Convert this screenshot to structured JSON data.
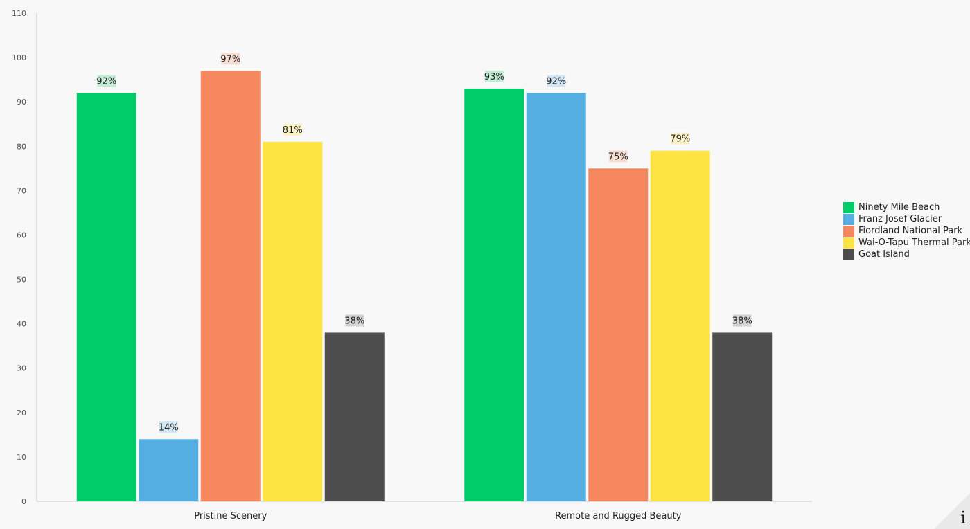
{
  "chart_data": {
    "type": "bar",
    "categories": [
      "Pristine Scenery",
      "Remote and Rugged Beauty"
    ],
    "series": [
      {
        "name": "Ninety Mile Beach",
        "color": "#00cc6a",
        "label_bg": "#c4ecd4",
        "values": [
          92,
          93
        ],
        "labels": [
          "92%",
          "93%"
        ]
      },
      {
        "name": "Franz Josef Glacier",
        "color": "#55aee2",
        "label_bg": "#d0e6f3",
        "values": [
          14,
          92
        ],
        "labels": [
          "14%",
          "92%"
        ]
      },
      {
        "name": "Fiordland National Park",
        "color": "#f5885e",
        "label_bg": "#f7dcd1",
        "values": [
          97,
          75
        ],
        "labels": [
          "97%",
          "75%"
        ]
      },
      {
        "name": "Wai-O-Tapu Thermal Park",
        "color": "#fee442",
        "label_bg": "#faf2c6",
        "values": [
          81,
          79
        ],
        "labels": [
          "81%",
          "79%"
        ]
      },
      {
        "name": "Goat Island",
        "color": "#4d4d4d",
        "label_bg": "#d3d3d3",
        "values": [
          38,
          38
        ],
        "labels": [
          "38%",
          "38%"
        ]
      }
    ],
    "ylim": [
      0,
      110
    ],
    "yticks": [
      "0",
      "10",
      "20",
      "30",
      "40",
      "50",
      "60",
      "70",
      "80",
      "90",
      "100",
      "110"
    ],
    "legend_position": "right",
    "grid": false
  },
  "info_icon": "info-icon"
}
